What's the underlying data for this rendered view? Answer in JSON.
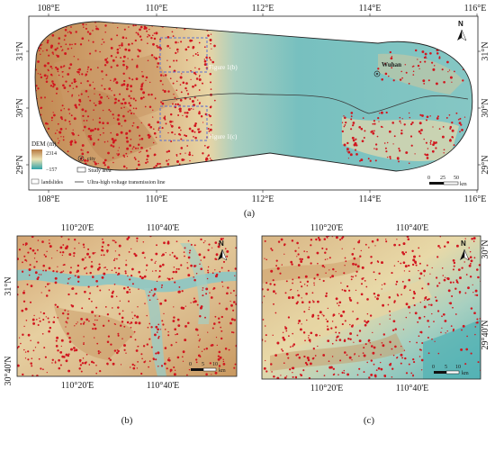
{
  "panel_a": {
    "top_ticks": [
      "108°E",
      "110°E",
      "112°E",
      "114°E",
      "116°E"
    ],
    "bottom_ticks": [
      "108°E",
      "110°E",
      "112°E",
      "114°E",
      "116°E"
    ],
    "left_ticks": [
      "31°N",
      "30°N",
      "29°N"
    ],
    "right_ticks": [
      "31°N",
      "30°N",
      "29°N"
    ],
    "city": "Wuhan",
    "callouts": [
      "Figure 1(b)",
      "Figure 1(c)"
    ],
    "legend": {
      "dem_title": "DEM (m)",
      "dem_max": "2314",
      "dem_min": "−157",
      "landslides": "landslides",
      "city": "city",
      "study_area": "Study area",
      "line": "Ultra-high voltage transmission line"
    },
    "scale": {
      "labels": [
        "0",
        "25",
        "50"
      ],
      "unit": "km"
    },
    "north": "N",
    "caption": "(a)"
  },
  "panel_b": {
    "top_ticks": [
      "110°20'E",
      "110°40'E"
    ],
    "bottom_ticks": [
      "110°20'E",
      "110°40'E"
    ],
    "left_ticks": [
      "31°N",
      "30°40'N"
    ],
    "scale": {
      "labels": [
        "0",
        "5",
        "10"
      ],
      "unit": "km"
    },
    "north": "N",
    "caption": "(b)"
  },
  "panel_c": {
    "top_ticks": [
      "110°20'E",
      "110°40'E"
    ],
    "bottom_ticks": [
      "110°20'E",
      "110°40'E"
    ],
    "right_ticks": [
      "30°N",
      "29°40'N"
    ],
    "scale": {
      "labels": [
        "0",
        "5",
        "10"
      ],
      "unit": "km"
    },
    "north": "N",
    "caption": "(c)"
  },
  "colors": {
    "dem_high": "#b5773f",
    "dem_mid": "#e9dcae",
    "dem_low": "#2fa3a8",
    "landslide": "#d1161f",
    "box": "#5a6fd1"
  }
}
